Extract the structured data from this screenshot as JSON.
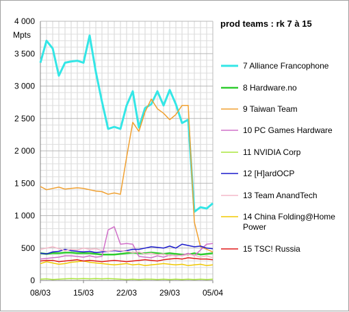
{
  "chart_data": {
    "type": "line",
    "title": "prod teams : rk 7 à 15",
    "ylabel": "Mpts",
    "xlabel": "",
    "ylim": [
      0,
      4000
    ],
    "yticks": [
      "0",
      "500",
      "1 000",
      "1 500",
      "2 000",
      "2 500",
      "3 000",
      "3 500",
      "4 000"
    ],
    "xticks": [
      "08/03",
      "15/03",
      "22/03",
      "29/03",
      "05/04"
    ],
    "grid": true,
    "legend_position": "right",
    "x_days": 29,
    "series": [
      {
        "name": "7 Alliance Francophone",
        "color": "#33e6e6",
        "width": 3,
        "values": [
          3360,
          3700,
          3580,
          3160,
          3360,
          3380,
          3390,
          3360,
          3780,
          3220,
          2760,
          2340,
          2370,
          2340,
          2700,
          2920,
          2360,
          2660,
          2720,
          2920,
          2700,
          2940,
          2720,
          2430,
          2480,
          1060,
          1130,
          1110,
          1190
        ]
      },
      {
        "name": "8 Hardware.no",
        "color": "#2ecc2e",
        "width": 2.5,
        "values": [
          420,
          410,
          420,
          420,
          430,
          430,
          420,
          420,
          420,
          410,
          400,
          400,
          400,
          410,
          420,
          430,
          420,
          420,
          430,
          420,
          410,
          420,
          410,
          400,
          400,
          420,
          400,
          410,
          420
        ]
      },
      {
        "name": "9 Taiwan Team",
        "color": "#f0a030",
        "width": 1.5,
        "values": [
          1450,
          1400,
          1420,
          1440,
          1410,
          1420,
          1430,
          1420,
          1400,
          1380,
          1370,
          1330,
          1350,
          1330,
          1900,
          2440,
          2300,
          2600,
          2800,
          2650,
          2580,
          2480,
          2560,
          2700,
          2700,
          900,
          520,
          480,
          440
        ]
      },
      {
        "name": "10 PC Games Hardware",
        "color": "#d070c8",
        "width": 1.5,
        "values": [
          330,
          340,
          350,
          360,
          380,
          380,
          370,
          360,
          380,
          360,
          370,
          780,
          830,
          560,
          570,
          560,
          370,
          360,
          350,
          380,
          360,
          390,
          380,
          390,
          420,
          380,
          470,
          560,
          570
        ]
      },
      {
        "name": "11 NVIDIA Corp",
        "color": "#aae63c",
        "width": 1.5,
        "values": [
          20,
          25,
          15,
          20,
          25,
          30,
          25,
          30,
          25,
          30,
          25,
          30,
          25,
          20,
          15,
          20,
          15,
          20,
          20,
          15,
          20,
          15,
          20,
          15,
          20,
          15,
          20,
          15,
          20
        ]
      },
      {
        "name": "12 [H]ardOCP",
        "color": "#1a1acc",
        "width": 1.5,
        "values": [
          420,
          410,
          440,
          450,
          480,
          460,
          450,
          440,
          450,
          430,
          440,
          450,
          460,
          450,
          460,
          480,
          480,
          500,
          520,
          510,
          500,
          530,
          500,
          560,
          540,
          520,
          530,
          500,
          490
        ]
      },
      {
        "name": "13 Team AnandTech",
        "color": "#f4b8c8",
        "width": 1.5,
        "values": [
          480,
          500,
          520,
          490,
          460,
          480,
          470,
          500,
          480,
          490,
          460,
          450,
          470,
          460,
          450,
          430,
          440,
          410,
          420,
          400,
          410,
          380,
          390,
          380,
          400,
          390,
          360,
          380,
          350
        ]
      },
      {
        "name": "14 China Folding@Home Power",
        "color": "#f0c800",
        "width": 1.5,
        "values": [
          260,
          290,
          270,
          250,
          260,
          280,
          290,
          300,
          280,
          270,
          260,
          250,
          240,
          250,
          260,
          240,
          250,
          230,
          240,
          250,
          260,
          250,
          240,
          250,
          230,
          240,
          250,
          230,
          240
        ]
      },
      {
        "name": "15 TSC! Russia",
        "color": "#e01818",
        "width": 1.5,
        "values": [
          300,
          310,
          310,
          290,
          300,
          310,
          320,
          300,
          310,
          300,
          290,
          300,
          310,
          300,
          290,
          300,
          310,
          320,
          310,
          300,
          320,
          330,
          340,
          330,
          350,
          340,
          330,
          330,
          320
        ]
      }
    ]
  }
}
